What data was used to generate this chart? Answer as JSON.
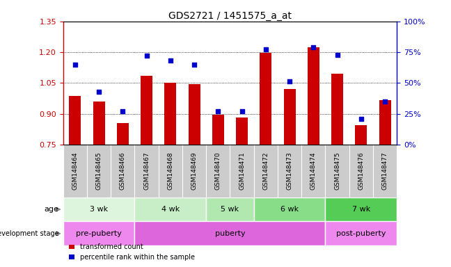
{
  "title": "GDS2721 / 1451575_a_at",
  "samples": [
    "GSM148464",
    "GSM148465",
    "GSM148466",
    "GSM148467",
    "GSM148468",
    "GSM148469",
    "GSM148470",
    "GSM148471",
    "GSM148472",
    "GSM148473",
    "GSM148474",
    "GSM148475",
    "GSM148476",
    "GSM148477"
  ],
  "transformed_count": [
    0.985,
    0.96,
    0.855,
    1.085,
    1.05,
    1.045,
    0.895,
    0.88,
    1.195,
    1.02,
    1.225,
    1.095,
    0.845,
    0.965
  ],
  "percentile_rank": [
    65,
    43,
    27,
    72,
    68,
    65,
    27,
    27,
    77,
    51,
    79,
    73,
    21,
    35
  ],
  "ylim_left": [
    0.75,
    1.35
  ],
  "ylim_right": [
    0,
    100
  ],
  "yticks_left": [
    0.75,
    0.9,
    1.05,
    1.2,
    1.35
  ],
  "yticks_right": [
    0,
    25,
    50,
    75,
    100
  ],
  "ytick_labels_right": [
    "0%",
    "25%",
    "50%",
    "75%",
    "100%"
  ],
  "bar_color": "#cc0000",
  "dot_color": "#0000cc",
  "gridline_y": [
    0.9,
    1.05,
    1.2
  ],
  "age_groups": [
    {
      "label": "3 wk",
      "start": 0,
      "end": 3
    },
    {
      "label": "4 wk",
      "start": 3,
      "end": 6
    },
    {
      "label": "5 wk",
      "start": 6,
      "end": 8
    },
    {
      "label": "6 wk",
      "start": 8,
      "end": 11
    },
    {
      "label": "7 wk",
      "start": 11,
      "end": 14
    }
  ],
  "age_colors": [
    "#ddf5dd",
    "#c8eec8",
    "#b0e8b0",
    "#88dd88",
    "#55cc55"
  ],
  "dev_groups": [
    {
      "label": "pre-puberty",
      "start": 0,
      "end": 3
    },
    {
      "label": "puberty",
      "start": 3,
      "end": 11
    },
    {
      "label": "post-puberty",
      "start": 11,
      "end": 14
    }
  ],
  "dev_colors": [
    "#ee88ee",
    "#dd66dd",
    "#ee88ee"
  ],
  "age_label": "age",
  "dev_label": "development stage",
  "legend_bar": "transformed count",
  "legend_dot": "percentile rank within the sample",
  "bar_width": 0.5,
  "background_color": "#ffffff",
  "axis_color_left": "#cc0000",
  "axis_color_right": "#0000cc",
  "xtick_bg": "#cccccc",
  "plot_bg": "#ffffff"
}
